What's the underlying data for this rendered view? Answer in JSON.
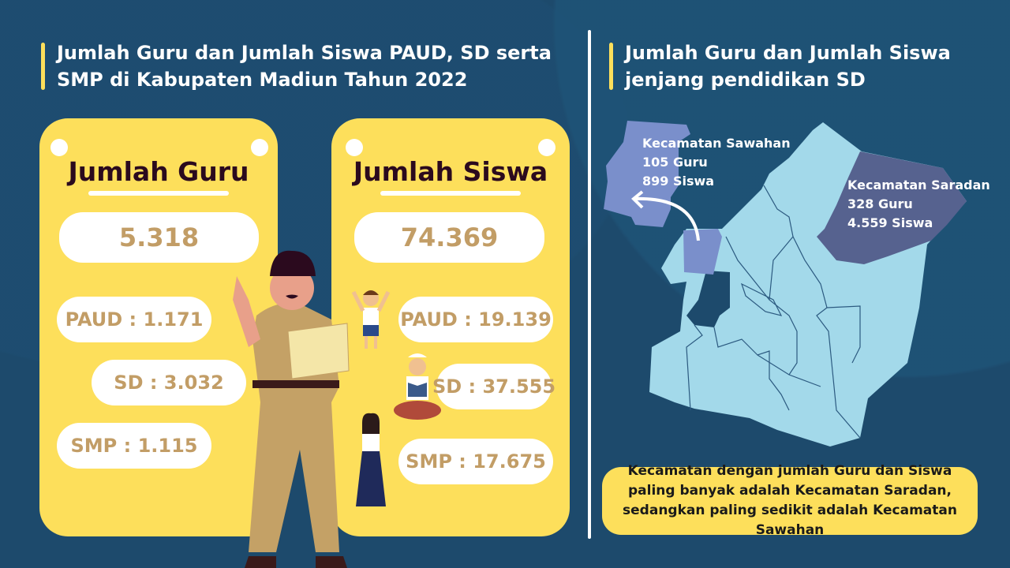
{
  "colors": {
    "background": "#1d4a6c",
    "accent_yellow": "#fddf5b",
    "value_text": "#c29d66",
    "map_light": "#a3d9ea",
    "sawahan": "#7a8fcb",
    "saradan": "#56628f"
  },
  "left_title": {
    "line1": "Jumlah Guru dan Jumlah Siswa PAUD, SD serta",
    "line2": "SMP di Kabupaten Madiun Tahun 2022"
  },
  "right_title": {
    "line1": "Jumlah Guru dan Jumlah Siswa",
    "line2": "jenjang pendidikan SD"
  },
  "guru": {
    "heading": "Jumlah Guru",
    "total": "5.318",
    "paud": "PAUD : 1.171",
    "sd": "SD : 3.032",
    "smp": "SMP : 1.115"
  },
  "siswa": {
    "heading": "Jumlah Siswa",
    "total": "74.369",
    "paud": "PAUD : 19.139",
    "sd": "SD : 37.555",
    "smp": "SMP : 17.675"
  },
  "map": {
    "sawahan": {
      "name": "Kecamatan Sawahan",
      "guru": "105 Guru",
      "siswa": "899 Siswa"
    },
    "saradan": {
      "name": "Kecamatan Saradan",
      "guru": "328 Guru",
      "siswa": "4.559 Siswa"
    }
  },
  "conclusion": "Kecamatan dengan jumlah Guru dan Siswa paling banyak adalah Kecamatan Saradan, sedangkan paling sedikit adalah Kecamatan Sawahan"
}
